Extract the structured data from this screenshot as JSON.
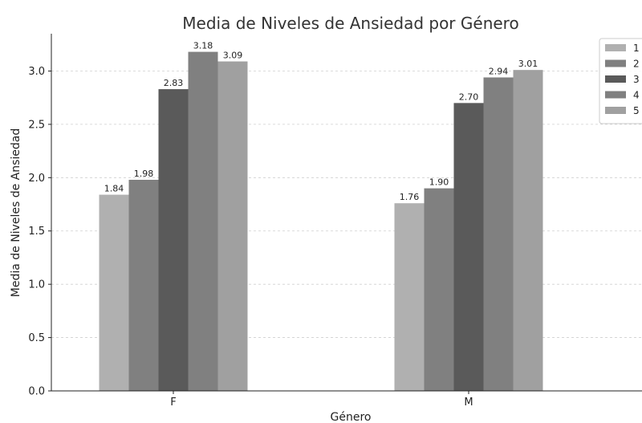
{
  "chart_data": {
    "type": "bar",
    "title": "Media de Niveles de Ansiedad por Género",
    "xlabel": "Género",
    "ylabel": "Media de Niveles de Ansiedad",
    "categories": [
      "F",
      "M"
    ],
    "series": [
      {
        "name": "1",
        "values": [
          1.84,
          1.76
        ],
        "color": "#b0b0b0"
      },
      {
        "name": "2",
        "values": [
          1.98,
          1.9
        ],
        "color": "#808080"
      },
      {
        "name": "3",
        "values": [
          2.83,
          2.7
        ],
        "color": "#5a5a5a"
      },
      {
        "name": "4",
        "values": [
          3.18,
          2.94
        ],
        "color": "#808080"
      },
      {
        "name": "5",
        "values": [
          3.09,
          3.01
        ],
        "color": "#a0a0a0"
      }
    ],
    "value_labels": [
      [
        "1.84",
        "1.76"
      ],
      [
        "1.98",
        "1.90"
      ],
      [
        "2.83",
        "2.70"
      ],
      [
        "3.18",
        "2.94"
      ],
      [
        "3.09",
        "3.01"
      ]
    ],
    "ylim": [
      0,
      3.35
    ],
    "yticks": [
      "0.0",
      "0.5",
      "1.0",
      "1.5",
      "2.0",
      "2.5",
      "3.0"
    ],
    "grid": true,
    "legend_position": "top-right"
  }
}
